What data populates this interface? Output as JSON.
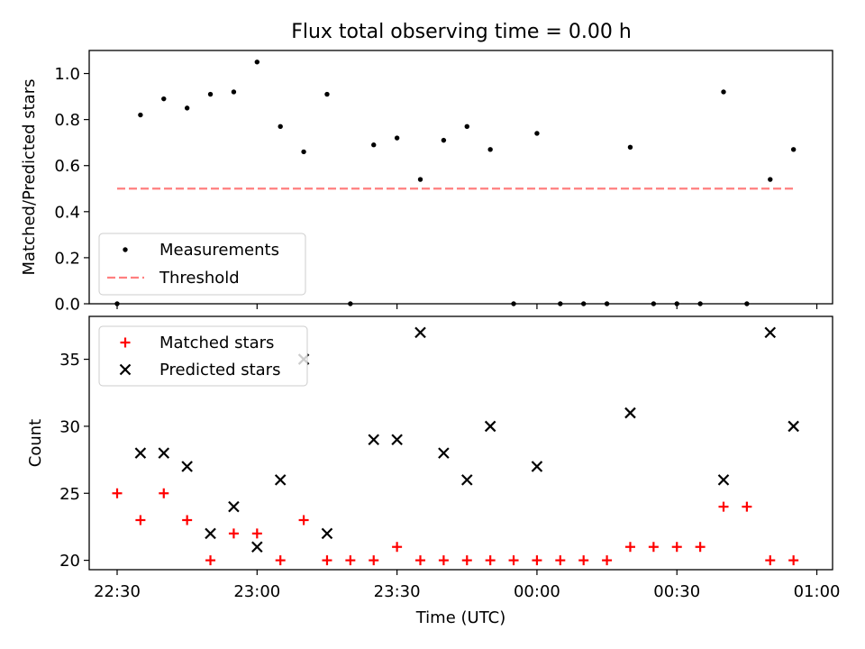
{
  "figure_title": "Flux total observing time = 0.00 h",
  "chart_data": [
    {
      "type": "scatter",
      "ylabel": "Matched/Predicted stars",
      "xlabel": "",
      "ylim": [
        0.0,
        1.1
      ],
      "x_range": [
        "22:30",
        "01:00"
      ],
      "y_ticks": [
        "0.0",
        "0.2",
        "0.4",
        "0.6",
        "0.8",
        "1.0"
      ],
      "legend_position": "lower-left",
      "series": [
        {
          "name": "Measurements",
          "marker": "dot",
          "color": "#000000",
          "x": [
            "22:30",
            "22:35",
            "22:40",
            "22:45",
            "22:50",
            "22:55",
            "23:00",
            "23:05",
            "23:10",
            "23:15",
            "23:20",
            "23:25",
            "23:30",
            "23:35",
            "23:40",
            "23:45",
            "23:50",
            "23:55",
            "00:00",
            "00:05",
            "00:10",
            "00:15",
            "00:20",
            "00:25",
            "00:30",
            "00:35",
            "00:40",
            "00:45",
            "00:50",
            "00:55"
          ],
          "values": [
            0.0,
            0.82,
            0.89,
            0.85,
            0.91,
            0.92,
            1.05,
            0.77,
            0.66,
            0.91,
            0.0,
            0.69,
            0.72,
            0.54,
            0.71,
            0.77,
            0.67,
            0.0,
            0.74,
            0.0,
            0.0,
            0.0,
            0.68,
            0.0,
            0.0,
            0.0,
            0.92,
            0.0,
            0.54,
            0.67
          ]
        },
        {
          "name": "Threshold",
          "marker": "dashed-line",
          "color": "#ff7f7f",
          "x": [
            "22:30",
            "00:55"
          ],
          "values": [
            0.5,
            0.5
          ]
        }
      ]
    },
    {
      "type": "scatter",
      "ylabel": "Count",
      "xlabel": "Time (UTC)",
      "ylim": [
        19.3,
        38.2
      ],
      "x_range": [
        "22:30",
        "01:00"
      ],
      "y_ticks": [
        "20",
        "25",
        "30",
        "35"
      ],
      "x_ticks": [
        "22:30",
        "23:00",
        "23:30",
        "00:00",
        "00:30",
        "01:00"
      ],
      "legend_position": "upper-left",
      "series": [
        {
          "name": "Matched stars",
          "marker": "plus",
          "color": "#ff0000",
          "x": [
            "22:30",
            "22:35",
            "22:40",
            "22:45",
            "22:50",
            "22:55",
            "23:00",
            "23:05",
            "23:10",
            "23:15",
            "23:20",
            "23:25",
            "23:30",
            "23:35",
            "23:40",
            "23:45",
            "23:50",
            "23:55",
            "00:00",
            "00:05",
            "00:10",
            "00:15",
            "00:20",
            "00:25",
            "00:30",
            "00:35",
            "00:40",
            "00:45",
            "00:50",
            "00:55"
          ],
          "values": [
            25,
            23,
            25,
            23,
            20,
            22,
            22,
            20,
            23,
            20,
            20,
            20,
            21,
            20,
            20,
            20,
            20,
            20,
            20,
            20,
            20,
            20,
            21,
            21,
            21,
            21,
            24,
            24,
            20,
            20
          ]
        },
        {
          "name": "Predicted stars",
          "marker": "x",
          "color": "#000000",
          "x": [
            "22:35",
            "22:40",
            "22:45",
            "22:50",
            "22:55",
            "23:00",
            "23:05",
            "23:10",
            "23:15",
            "23:25",
            "23:30",
            "23:35",
            "23:40",
            "23:45",
            "23:50",
            "00:00",
            "00:20",
            "00:40",
            "00:50",
            "00:55"
          ],
          "values": [
            28,
            28,
            27,
            22,
            24,
            21,
            26,
            35,
            22,
            29,
            29,
            37,
            28,
            26,
            30,
            27,
            31,
            26,
            37,
            30
          ]
        }
      ]
    }
  ]
}
